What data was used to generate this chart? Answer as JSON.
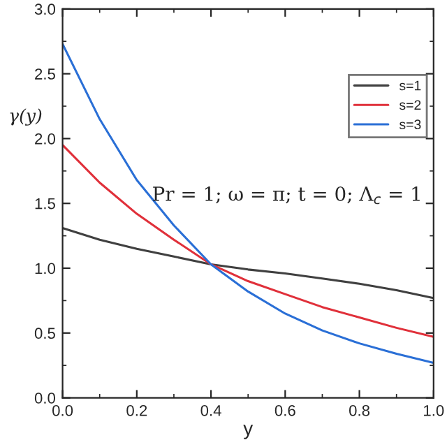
{
  "chart_data": {
    "type": "line",
    "xlabel": "y",
    "ylabel": "γ(y)",
    "x": [
      0,
      0.1,
      0.2,
      0.3,
      0.4,
      0.5,
      0.6,
      0.7,
      0.8,
      0.9,
      1.0
    ],
    "series": [
      {
        "name": "s=1",
        "color": "#404040",
        "values": [
          1.31,
          1.22,
          1.15,
          1.09,
          1.03,
          0.99,
          0.96,
          0.92,
          0.88,
          0.83,
          0.77
        ]
      },
      {
        "name": "s=2",
        "color": "#e0303a",
        "values": [
          1.95,
          1.66,
          1.42,
          1.22,
          1.03,
          0.9,
          0.8,
          0.7,
          0.62,
          0.54,
          0.47
        ]
      },
      {
        "name": "s=3",
        "color": "#2a6fd6",
        "values": [
          2.73,
          2.15,
          1.68,
          1.33,
          1.03,
          0.82,
          0.65,
          0.52,
          0.42,
          0.34,
          0.27
        ]
      }
    ],
    "xlim": [
      0,
      1.0
    ],
    "ylim": [
      0,
      3.0
    ],
    "xticks": [
      {
        "value": 0,
        "label": "0.0"
      },
      0.2,
      0.4,
      0.6,
      0.8,
      {
        "value": 1.0,
        "label": "1.0"
      }
    ],
    "yticks": [
      {
        "value": 0,
        "label": "0.0"
      },
      0.5,
      {
        "value": 1.0,
        "label": "1.0"
      },
      1.5,
      {
        "value": 2.0,
        "label": "2.0"
      },
      2.5,
      {
        "value": 3.0,
        "label": "3.0"
      }
    ],
    "annotations": [
      "Pr = 1; ω = π; t = 0; Λ$_{c}$ = 1"
    ],
    "legend": "right",
    "grid": false,
    "marker": "none",
    "line_style": "solid"
  }
}
